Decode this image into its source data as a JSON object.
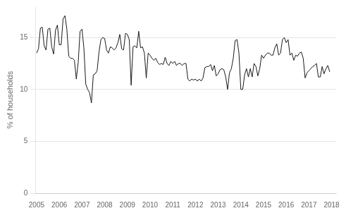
{
  "chart_data": {
    "type": "line",
    "ylabel": "% of households",
    "color": "#1a1a1a",
    "grid": "y",
    "xlim": [
      2004.95,
      2018.2
    ],
    "xticks": [
      2005,
      2006,
      2007,
      2008,
      2009,
      2010,
      2011,
      2012,
      2013,
      2014,
      2015,
      2016,
      2017,
      2018
    ],
    "ylim": [
      0,
      18
    ],
    "yticks": [
      0,
      5,
      10,
      15
    ],
    "x": [
      2005.0,
      2005.0833333333333,
      2005.1666666666667,
      2005.25,
      2005.3333333333333,
      2005.4166666666667,
      2005.5,
      2005.5833333333333,
      2005.6666666666667,
      2005.75,
      2005.8333333333333,
      2005.9166666666667,
      2006.0,
      2006.0833333333333,
      2006.1666666666667,
      2006.25,
      2006.3333333333333,
      2006.4166666666667,
      2006.5,
      2006.5833333333333,
      2006.6666666666667,
      2006.75,
      2006.8333333333333,
      2006.9166666666667,
      2007.0,
      2007.0833333333333,
      2007.1666666666667,
      2007.25,
      2007.3333333333333,
      2007.4166666666667,
      2007.5,
      2007.5833333333333,
      2007.6666666666667,
      2007.75,
      2007.8333333333333,
      2007.9166666666667,
      2008.0,
      2008.0833333333333,
      2008.1666666666667,
      2008.25,
      2008.3333333333333,
      2008.4166666666667,
      2008.5,
      2008.5833333333333,
      2008.6666666666667,
      2008.75,
      2008.8333333333333,
      2008.9166666666667,
      2009.0,
      2009.0833333333333,
      2009.1666666666667,
      2009.25,
      2009.3333333333333,
      2009.4166666666667,
      2009.5,
      2009.5833333333333,
      2009.6666666666667,
      2009.75,
      2009.8333333333333,
      2009.9166666666667,
      2010.0,
      2010.0833333333333,
      2010.1666666666667,
      2010.25,
      2010.3333333333333,
      2010.4166666666667,
      2010.5,
      2010.5833333333333,
      2010.6666666666667,
      2010.75,
      2010.8333333333333,
      2010.9166666666667,
      2011.0,
      2011.0833333333333,
      2011.1666666666667,
      2011.25,
      2011.3333333333333,
      2011.4166666666667,
      2011.5,
      2011.5833333333333,
      2011.6666666666667,
      2011.75,
      2011.8333333333333,
      2011.9166666666667,
      2012.0,
      2012.0833333333333,
      2012.1666666666667,
      2012.25,
      2012.3333333333333,
      2012.4166666666667,
      2012.5,
      2012.5833333333333,
      2012.6666666666667,
      2012.75,
      2012.8333333333333,
      2012.9166666666667,
      2013.0,
      2013.0833333333333,
      2013.1666666666667,
      2013.25,
      2013.3333333333333,
      2013.4166666666667,
      2013.5,
      2013.5833333333333,
      2013.6666666666667,
      2013.75,
      2013.8333333333333,
      2013.9166666666667,
      2014.0,
      2014.0833333333333,
      2014.1666666666667,
      2014.25,
      2014.3333333333333,
      2014.4166666666667,
      2014.5,
      2014.5833333333333,
      2014.6666666666667,
      2014.75,
      2014.8333333333333,
      2014.9166666666667,
      2015.0,
      2015.0833333333333,
      2015.1666666666667,
      2015.25,
      2015.3333333333333,
      2015.4166666666667,
      2015.5,
      2015.5833333333333,
      2015.6666666666667,
      2015.75,
      2015.8333333333333,
      2015.9166666666667,
      2016.0,
      2016.0833333333333,
      2016.1666666666667,
      2016.25,
      2016.3333333333333,
      2016.4166666666667,
      2016.5,
      2016.5833333333333,
      2016.6666666666667,
      2016.75,
      2016.8333333333333,
      2016.9166666666667,
      2017.0,
      2017.0833333333333,
      2017.1666666666667,
      2017.25,
      2017.3333333333333,
      2017.4166666666667,
      2017.5,
      2017.5833333333333,
      2017.6666666666667,
      2017.75,
      2017.8333333333333,
      2017.9166666666667
    ],
    "values": [
      13.5,
      13.9,
      15.9,
      16.0,
      14.2,
      13.8,
      15.8,
      15.9,
      14.1,
      13.4,
      15.7,
      16.2,
      14.3,
      14.3,
      16.8,
      17.1,
      15.8,
      13.2,
      13.0,
      13.0,
      12.8,
      11.0,
      12.6,
      15.6,
      15.8,
      14.0,
      10.5,
      10.0,
      9.7,
      8.7,
      11.4,
      11.5,
      11.8,
      13.6,
      14.8,
      15.0,
      14.9,
      13.8,
      13.5,
      14.1,
      14.0,
      13.8,
      14.0,
      14.5,
      15.3,
      13.9,
      13.8,
      15.4,
      15.3,
      14.8,
      10.4,
      14.1,
      14.2,
      14.0,
      15.6,
      14.0,
      14.1,
      13.5,
      11.1,
      13.5,
      13.3,
      13.0,
      12.8,
      13.0,
      12.6,
      12.4,
      12.5,
      12.4,
      13.1,
      12.5,
      12.3,
      12.7,
      12.5,
      12.7,
      12.3,
      12.5,
      12.5,
      12.3,
      12.5,
      12.5,
      11.0,
      10.8,
      11.0,
      10.9,
      11.0,
      10.8,
      11.0,
      10.8,
      11.1,
      12.1,
      12.2,
      12.2,
      12.4,
      11.8,
      12.3,
      11.3,
      11.5,
      11.9,
      12.0,
      11.9,
      11.2,
      10.0,
      11.6,
      12.0,
      13.0,
      14.7,
      14.8,
      13.5,
      10.0,
      10.0,
      11.4,
      12.0,
      11.2,
      12.0,
      11.2,
      12.5,
      12.2,
      11.3,
      12.0,
      13.3,
      13.0,
      13.3,
      13.5,
      13.5,
      13.3,
      13.3,
      14.0,
      14.4,
      13.3,
      13.5,
      14.8,
      15.0,
      14.5,
      14.8,
      13.3,
      13.5,
      12.8,
      13.3,
      13.2,
      13.5,
      13.6,
      13.0,
      11.1,
      11.6,
      11.8,
      12.0,
      12.2,
      12.3,
      12.5,
      11.2,
      11.2,
      12.2,
      11.5,
      12.0,
      12.3,
      11.7
    ]
  }
}
